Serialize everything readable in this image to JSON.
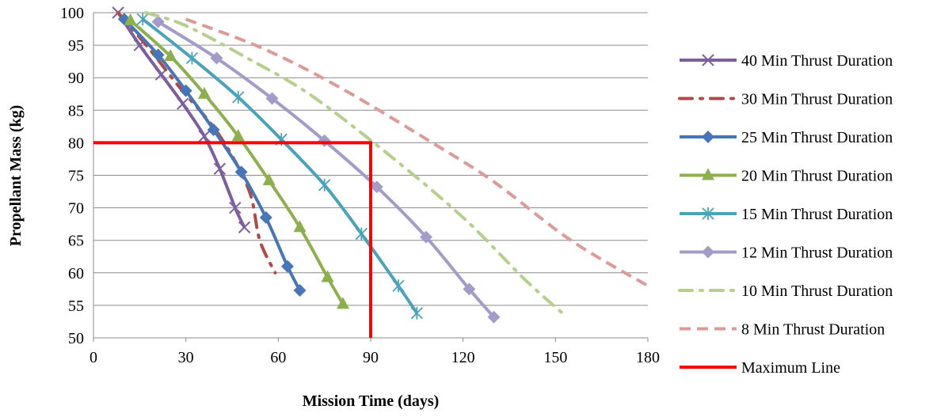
{
  "chart_data": {
    "type": "line",
    "title": "",
    "xlabel": "Mission Time (days)",
    "ylabel": "Propellant Mass (kg)",
    "xlim": [
      0,
      180
    ],
    "ylim": [
      50,
      100
    ],
    "xticks": [
      "0",
      "30",
      "60",
      "90",
      "120",
      "150",
      "180"
    ],
    "yticks": [
      "50",
      "55",
      "60",
      "65",
      "70",
      "75",
      "80",
      "85",
      "90",
      "95",
      "100"
    ],
    "grid": "horizontal",
    "legend_position": "right",
    "series": [
      {
        "name": "40 Min Thrust Duration",
        "color": "#7d5fa0",
        "style": "solid",
        "marker": "x",
        "x": [
          8,
          15,
          22,
          29,
          36,
          41,
          46,
          49
        ],
        "y": [
          100,
          95,
          90.5,
          86,
          81,
          76,
          70,
          67
        ]
      },
      {
        "name": "30 Min Thrust Duration",
        "color": "#b04a47",
        "style": "dash-dot",
        "marker": "none",
        "x": [
          8,
          18,
          28,
          38,
          45,
          51,
          54,
          59
        ],
        "y": [
          100,
          94.5,
          88.5,
          83,
          78,
          72,
          65,
          60
        ]
      },
      {
        "name": "25 Min Thrust Duration",
        "color": "#4676b8",
        "style": "solid",
        "marker": "diamond",
        "x": [
          10,
          21,
          30,
          39,
          48,
          56,
          63,
          67
        ],
        "y": [
          99,
          93.5,
          88,
          82,
          75.5,
          68.5,
          61,
          57.3
        ]
      },
      {
        "name": "20 Min Thrust Duration",
        "color": "#8db04d",
        "style": "solid",
        "marker": "triangle",
        "x": [
          12,
          25,
          36,
          47,
          57,
          67,
          76,
          81
        ],
        "y": [
          98.8,
          93.3,
          87.5,
          81,
          74.2,
          67,
          59.3,
          55.2
        ]
      },
      {
        "name": "15 Min Thrust Duration",
        "color": "#4aa3b8",
        "style": "solid",
        "marker": "asterisk",
        "x": [
          16,
          32,
          47,
          61,
          75,
          87,
          99,
          105
        ],
        "y": [
          99,
          93,
          87,
          80.5,
          73.5,
          66,
          58,
          53.8
        ]
      },
      {
        "name": "12 Min Thrust Duration",
        "color": "#a49cc8",
        "style": "solid",
        "marker": "diamond",
        "x": [
          21,
          40,
          58,
          75,
          92,
          108,
          122,
          130
        ],
        "y": [
          98.6,
          93,
          86.8,
          80.3,
          73.2,
          65.5,
          57.5,
          53.2
        ]
      },
      {
        "name": "10 Min Thrust Duration",
        "color": "#b6cf8c",
        "style": "dash-dot",
        "marker": "none",
        "x": [
          17,
          30,
          50,
          70,
          95,
          120,
          140,
          153
        ],
        "y": [
          100,
          98,
          93,
          87.5,
          78.5,
          68.5,
          59,
          53.5
        ]
      },
      {
        "name": "8 Min Thrust Duration",
        "color": "#dc9a98",
        "style": "dashed",
        "marker": "none",
        "x": [
          30,
          55,
          80,
          110,
          130,
          155,
          180
        ],
        "y": [
          99,
          94.5,
          88.5,
          80,
          74,
          65,
          58
        ]
      },
      {
        "name": "Maximum Line",
        "color": "#ff0000",
        "style": "solid",
        "marker": "none",
        "x": [
          0,
          90,
          90
        ],
        "y": [
          80,
          80,
          50
        ]
      }
    ]
  }
}
